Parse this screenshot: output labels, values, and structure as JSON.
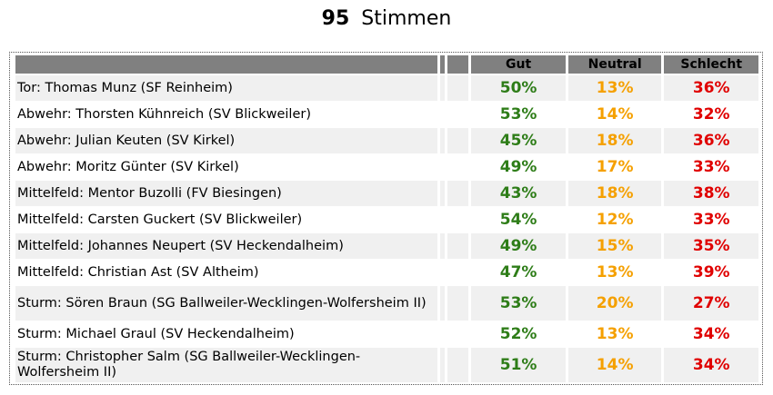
{
  "header": {
    "count": "95",
    "label": "Stimmen"
  },
  "columns": {
    "good": "Gut",
    "neutral": "Neutral",
    "bad": "Schlecht"
  },
  "colors": {
    "good": "#2e7d18",
    "neutral": "#f5a000",
    "bad": "#e00000",
    "header_bg": "#808080",
    "row_alt": "#f0f0f0"
  },
  "rows": [
    {
      "name": "Tor: Thomas Munz (SF Reinheim)",
      "good": "50%",
      "neutral": "13%",
      "bad": "36%"
    },
    {
      "name": "Abwehr: Thorsten Kühnreich (SV Blickweiler)",
      "good": "53%",
      "neutral": "14%",
      "bad": "32%"
    },
    {
      "name": "Abwehr: Julian Keuten (SV Kirkel)",
      "good": "45%",
      "neutral": "18%",
      "bad": "36%"
    },
    {
      "name": "Abwehr: Moritz Günter (SV Kirkel)",
      "good": "49%",
      "neutral": "17%",
      "bad": "33%"
    },
    {
      "name": "Mittelfeld: Mentor Buzolli (FV Biesingen)",
      "good": "43%",
      "neutral": "18%",
      "bad": "38%"
    },
    {
      "name": "Mittelfeld: Carsten Guckert (SV Blickweiler)",
      "good": "54%",
      "neutral": "12%",
      "bad": "33%"
    },
    {
      "name": "Mittelfeld: Johannes Neupert (SV Heckendalheim)",
      "good": "49%",
      "neutral": "15%",
      "bad": "35%"
    },
    {
      "name": "Mittelfeld: Christian Ast (SV Altheim)",
      "good": "47%",
      "neutral": "13%",
      "bad": "39%"
    },
    {
      "name": "Sturm: Sören Braun (SG Ballweiler-Wecklingen-Wolfersheim II)",
      "good": "53%",
      "neutral": "20%",
      "bad": "27%"
    },
    {
      "name": "Sturm: Michael Graul (SV Heckendalheim)",
      "good": "52%",
      "neutral": "13%",
      "bad": "34%"
    },
    {
      "name": "Sturm: Christopher Salm (SG Ballweiler-Wecklingen-Wolfersheim II)",
      "good": "51%",
      "neutral": "14%",
      "bad": "34%"
    }
  ]
}
